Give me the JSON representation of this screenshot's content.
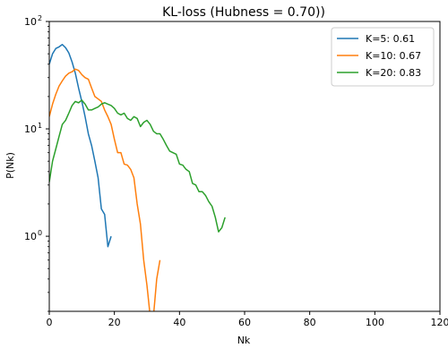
{
  "chart_data": {
    "type": "line",
    "title": "KL-loss (Hubness = 0.70))",
    "xlabel": "Nk",
    "ylabel": "P(Nk)",
    "yscale": "log",
    "xlim": [
      0,
      120
    ],
    "ylim": [
      0.2,
      100
    ],
    "x_ticks": [
      0,
      20,
      40,
      60,
      80,
      100,
      120
    ],
    "x_tick_labels": [
      "0",
      "20",
      "40",
      "60",
      "80",
      "100",
      "120"
    ],
    "y_ticks": [
      1,
      10,
      100
    ],
    "y_tick_labels": [
      {
        "base": "10",
        "exp": "0"
      },
      {
        "base": "10",
        "exp": "1"
      },
      {
        "base": "10",
        "exp": "2"
      }
    ],
    "legend": {
      "position": "top-right"
    },
    "grid": false,
    "series": [
      {
        "name": "K=5: 0.61",
        "color": "#1f77b4",
        "x": [
          0,
          1,
          2,
          3,
          4,
          5,
          6,
          7,
          8,
          9,
          10,
          11,
          12,
          13,
          14,
          15,
          16,
          17,
          18,
          19
        ],
        "y": [
          40,
          50,
          56,
          58,
          61,
          57,
          51,
          42,
          33,
          24,
          18,
          13,
          9,
          7,
          5,
          3.5,
          1.8,
          1.6,
          0.8,
          1.0
        ]
      },
      {
        "name": "K=10: 0.67",
        "color": "#ff7f0e",
        "x": [
          0,
          1,
          2,
          3,
          4,
          5,
          6,
          7,
          8,
          9,
          10,
          11,
          12,
          13,
          14,
          15,
          16,
          17,
          18,
          19,
          20,
          21,
          22,
          23,
          24,
          25,
          26,
          27,
          28,
          29,
          30,
          31,
          32,
          33,
          34
        ],
        "y": [
          13,
          17,
          21,
          25,
          28,
          31,
          33,
          34,
          36,
          35,
          32,
          30,
          29,
          24,
          20,
          19,
          18,
          15,
          13,
          11,
          8,
          6,
          6,
          4.7,
          4.6,
          4.2,
          3.5,
          2.0,
          1.3,
          0.6,
          0.35,
          0.18,
          0.18,
          0.4,
          0.6
        ]
      },
      {
        "name": "K=20: 0.83",
        "color": "#2ca02c",
        "x": [
          0,
          1,
          2,
          3,
          4,
          5,
          6,
          7,
          8,
          9,
          10,
          11,
          12,
          13,
          14,
          15,
          16,
          17,
          18,
          19,
          20,
          21,
          22,
          23,
          24,
          25,
          26,
          27,
          28,
          29,
          30,
          31,
          32,
          33,
          34,
          35,
          36,
          37,
          38,
          39,
          40,
          41,
          42,
          43,
          44,
          45,
          46,
          47,
          48,
          49,
          50,
          51,
          52,
          53,
          54
        ],
        "y": [
          3.2,
          5.0,
          6.5,
          8.5,
          11,
          12,
          14,
          16.5,
          18,
          17.5,
          18.5,
          17,
          15,
          15,
          15.5,
          16,
          17,
          17.5,
          17,
          16.5,
          15.5,
          14,
          13.5,
          14,
          12.5,
          12,
          13,
          12.5,
          10.5,
          11.5,
          12,
          11,
          9.5,
          9,
          9,
          8,
          7,
          6.2,
          6,
          5.8,
          4.7,
          4.6,
          4.2,
          4.0,
          3.1,
          3.0,
          2.6,
          2.6,
          2.4,
          2.1,
          1.9,
          1.5,
          1.1,
          1.2,
          1.5
        ]
      }
    ]
  }
}
